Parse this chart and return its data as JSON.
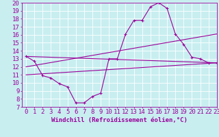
{
  "background_color": "#c8eef0",
  "line_color": "#990099",
  "xlabel": "Windchill (Refroidissement éolien,°C)",
  "xlim": [
    -0.5,
    23
  ],
  "ylim": [
    7,
    20
  ],
  "yticks": [
    7,
    8,
    9,
    10,
    11,
    12,
    13,
    14,
    15,
    16,
    17,
    18,
    19,
    20
  ],
  "xticks": [
    0,
    1,
    2,
    3,
    4,
    5,
    6,
    7,
    8,
    9,
    10,
    11,
    12,
    13,
    14,
    15,
    16,
    17,
    18,
    19,
    20,
    21,
    22,
    23
  ],
  "main_x": [
    0,
    1,
    2,
    3,
    4,
    5,
    6,
    7,
    8,
    9,
    10,
    11,
    12,
    13,
    14,
    15,
    16,
    17,
    18,
    19,
    20,
    21,
    22,
    23
  ],
  "main_y": [
    13.3,
    12.7,
    10.9,
    10.6,
    9.9,
    9.5,
    7.5,
    7.5,
    8.3,
    8.7,
    13.0,
    13.0,
    16.1,
    17.8,
    17.8,
    19.5,
    20.0,
    19.3,
    16.1,
    14.8,
    13.2,
    13.0,
    12.5,
    12.5
  ],
  "line2_x": [
    0,
    23
  ],
  "line2_y": [
    13.3,
    12.5
  ],
  "line3_x": [
    0,
    23
  ],
  "line3_y": [
    12.0,
    16.1
  ],
  "line4_x": [
    0,
    23
  ],
  "line4_y": [
    11.0,
    12.5
  ],
  "grid_color": "#ffffff",
  "font_size": 6.5
}
